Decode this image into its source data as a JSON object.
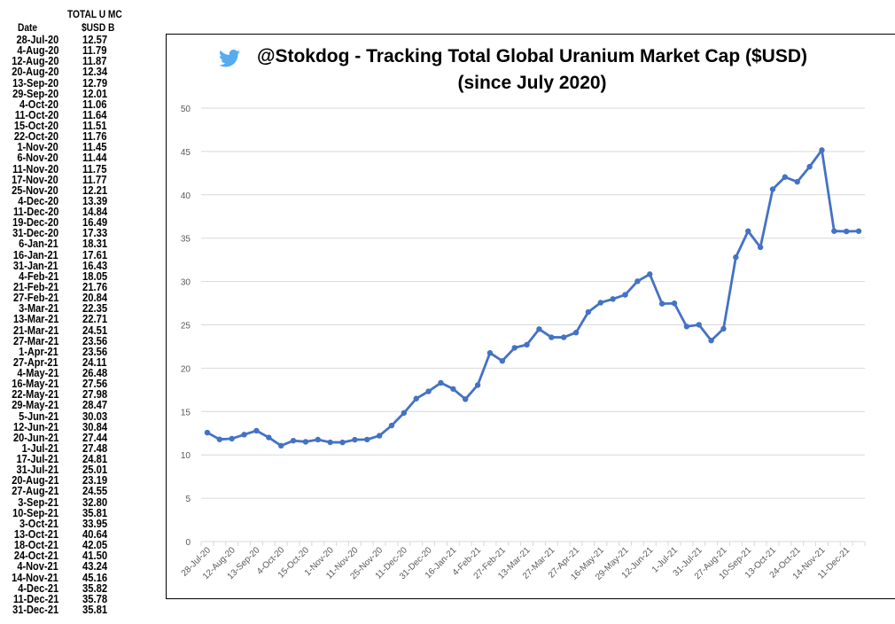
{
  "table": {
    "header_date": "Date",
    "header_value_line1": "TOTAL U MC",
    "header_value_line2": "$USD B",
    "rows": [
      [
        "28-Jul-20",
        "12.57"
      ],
      [
        "4-Aug-20",
        "11.79"
      ],
      [
        "12-Aug-20",
        "11.87"
      ],
      [
        "20-Aug-20",
        "12.34"
      ],
      [
        "13-Sep-20",
        "12.79"
      ],
      [
        "29-Sep-20",
        "12.01"
      ],
      [
        "4-Oct-20",
        "11.06"
      ],
      [
        "11-Oct-20",
        "11.64"
      ],
      [
        "15-Oct-20",
        "11.51"
      ],
      [
        "22-Oct-20",
        "11.76"
      ],
      [
        "1-Nov-20",
        "11.45"
      ],
      [
        "6-Nov-20",
        "11.44"
      ],
      [
        "11-Nov-20",
        "11.75"
      ],
      [
        "17-Nov-20",
        "11.77"
      ],
      [
        "25-Nov-20",
        "12.21"
      ],
      [
        "4-Dec-20",
        "13.39"
      ],
      [
        "11-Dec-20",
        "14.84"
      ],
      [
        "19-Dec-20",
        "16.49"
      ],
      [
        "31-Dec-20",
        "17.33"
      ],
      [
        "6-Jan-21",
        "18.31"
      ],
      [
        "16-Jan-21",
        "17.61"
      ],
      [
        "31-Jan-21",
        "16.43"
      ],
      [
        "4-Feb-21",
        "18.05"
      ],
      [
        "21-Feb-21",
        "21.76"
      ],
      [
        "27-Feb-21",
        "20.84"
      ],
      [
        "3-Mar-21",
        "22.35"
      ],
      [
        "13-Mar-21",
        "22.71"
      ],
      [
        "21-Mar-21",
        "24.51"
      ],
      [
        "27-Mar-21",
        "23.56"
      ],
      [
        "1-Apr-21",
        "23.56"
      ],
      [
        "27-Apr-21",
        "24.11"
      ],
      [
        "4-May-21",
        "26.48"
      ],
      [
        "16-May-21",
        "27.56"
      ],
      [
        "22-May-21",
        "27.98"
      ],
      [
        "29-May-21",
        "28.47"
      ],
      [
        "5-Jun-21",
        "30.03"
      ],
      [
        "12-Jun-21",
        "30.84"
      ],
      [
        "20-Jun-21",
        "27.44"
      ],
      [
        "1-Jul-21",
        "27.48"
      ],
      [
        "17-Jul-21",
        "24.81"
      ],
      [
        "31-Jul-21",
        "25.01"
      ],
      [
        "20-Aug-21",
        "23.19"
      ],
      [
        "27-Aug-21",
        "24.55"
      ],
      [
        "3-Sep-21",
        "32.80"
      ],
      [
        "10-Sep-21",
        "35.81"
      ],
      [
        "3-Oct-21",
        "33.95"
      ],
      [
        "13-Oct-21",
        "40.64"
      ],
      [
        "18-Oct-21",
        "42.05"
      ],
      [
        "24-Oct-21",
        "41.50"
      ],
      [
        "4-Nov-21",
        "43.24"
      ],
      [
        "14-Nov-21",
        "45.16"
      ],
      [
        "4-Dec-21",
        "35.82"
      ],
      [
        "11-Dec-21",
        "35.78"
      ],
      [
        "31-Dec-21",
        "35.81"
      ]
    ]
  },
  "chart_data": {
    "type": "line",
    "title": "@Stokdog - Tracking Total Global Uranium Market Cap ($USD)",
    "subtitle": "(since July 2020)",
    "title_icon": "twitter-bird-icon",
    "xlabel": "",
    "ylabel": "",
    "ylim": [
      0,
      50
    ],
    "yticks": [
      0,
      5,
      10,
      15,
      20,
      25,
      30,
      35,
      40,
      45,
      50
    ],
    "grid": true,
    "legend": "none",
    "series_color": "#4472c4",
    "icon_color": "#55acee",
    "x_tick_labels": [
      "28-Jul-20",
      "12-Aug-20",
      "13-Sep-20",
      "4-Oct-20",
      "15-Oct-20",
      "1-Nov-20",
      "11-Nov-20",
      "25-Nov-20",
      "11-Dec-20",
      "31-Dec-20",
      "16-Jan-21",
      "4-Feb-21",
      "27-Feb-21",
      "13-Mar-21",
      "27-Mar-21",
      "27-Apr-21",
      "16-May-21",
      "29-May-21",
      "12-Jun-21",
      "1-Jul-21",
      "31-Jul-21",
      "27-Aug-21",
      "10-Sep-21",
      "13-Oct-21",
      "24-Oct-21",
      "14-Nov-21",
      "11-Dec-21"
    ],
    "x": [
      "28-Jul-20",
      "4-Aug-20",
      "12-Aug-20",
      "20-Aug-20",
      "13-Sep-20",
      "29-Sep-20",
      "4-Oct-20",
      "11-Oct-20",
      "15-Oct-20",
      "22-Oct-20",
      "1-Nov-20",
      "6-Nov-20",
      "11-Nov-20",
      "17-Nov-20",
      "25-Nov-20",
      "4-Dec-20",
      "11-Dec-20",
      "19-Dec-20",
      "31-Dec-20",
      "6-Jan-21",
      "16-Jan-21",
      "31-Jan-21",
      "4-Feb-21",
      "21-Feb-21",
      "27-Feb-21",
      "3-Mar-21",
      "13-Mar-21",
      "21-Mar-21",
      "27-Mar-21",
      "1-Apr-21",
      "27-Apr-21",
      "4-May-21",
      "16-May-21",
      "22-May-21",
      "29-May-21",
      "5-Jun-21",
      "12-Jun-21",
      "20-Jun-21",
      "1-Jul-21",
      "17-Jul-21",
      "31-Jul-21",
      "20-Aug-21",
      "27-Aug-21",
      "3-Sep-21",
      "10-Sep-21",
      "3-Oct-21",
      "13-Oct-21",
      "18-Oct-21",
      "24-Oct-21",
      "4-Nov-21",
      "14-Nov-21",
      "4-Dec-21",
      "11-Dec-21",
      "31-Dec-21"
    ],
    "values": [
      12.57,
      11.79,
      11.87,
      12.34,
      12.79,
      12.01,
      11.06,
      11.64,
      11.51,
      11.76,
      11.45,
      11.44,
      11.75,
      11.77,
      12.21,
      13.39,
      14.84,
      16.49,
      17.33,
      18.31,
      17.61,
      16.43,
      18.05,
      21.76,
      20.84,
      22.35,
      22.71,
      24.51,
      23.56,
      23.56,
      24.11,
      26.48,
      27.56,
      27.98,
      28.47,
      30.03,
      30.84,
      27.44,
      27.48,
      24.81,
      25.01,
      23.19,
      24.55,
      32.8,
      35.81,
      33.95,
      40.64,
      42.05,
      41.5,
      43.24,
      45.16,
      35.82,
      35.78,
      35.81
    ]
  }
}
